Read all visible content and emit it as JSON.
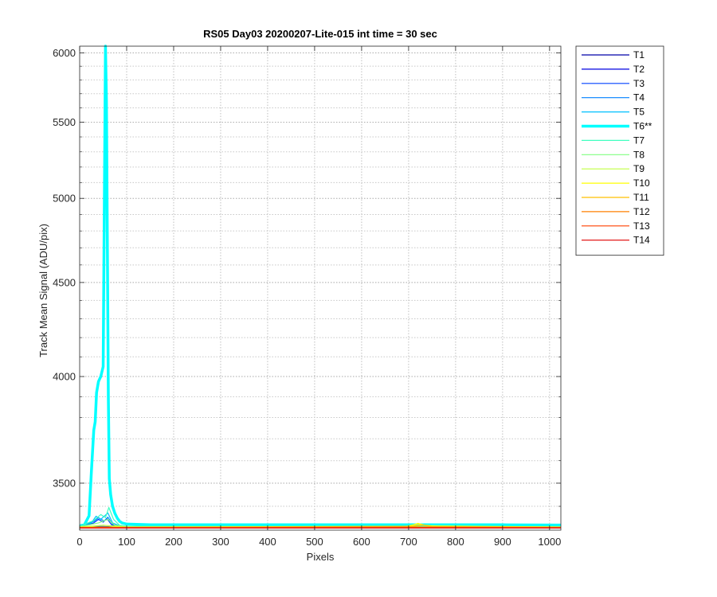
{
  "chart_data": {
    "type": "line",
    "title": "RS05 Day03 20200207-Lite-015 int time = 30 sec",
    "xlabel": "Pixels",
    "ylabel": "Track Mean Signal (ADU/pix)",
    "xlim": [
      0,
      1024
    ],
    "ylim": [
      3300,
      6050
    ],
    "yscale": "log",
    "xticks": [
      0,
      100,
      200,
      300,
      400,
      500,
      600,
      700,
      800,
      900,
      1000
    ],
    "yticks": [
      3500,
      4000,
      4500,
      5000,
      5500,
      6000
    ],
    "yminor": [
      3400,
      3600,
      3700,
      3800,
      3900,
      4100,
      4200,
      4300,
      4400,
      4600,
      4700,
      4800,
      4900,
      5100,
      5200,
      5300,
      5400,
      5600,
      5700,
      5800,
      5900
    ],
    "grid": "dotted",
    "legend_position": "outside-right",
    "series": [
      {
        "name": "T1",
        "color": "#0000a8",
        "width": 1.2,
        "points": [
          [
            0,
            3312
          ],
          [
            30,
            3314
          ],
          [
            50,
            3313
          ],
          [
            100,
            3311
          ],
          [
            400,
            3313
          ],
          [
            700,
            3312
          ],
          [
            1024,
            3312
          ]
        ]
      },
      {
        "name": "T2",
        "color": "#0000e0",
        "width": 1.2,
        "points": [
          [
            0,
            3313
          ],
          [
            35,
            3316
          ],
          [
            55,
            3315
          ],
          [
            100,
            3312
          ],
          [
            500,
            3313
          ],
          [
            800,
            3312
          ],
          [
            1024,
            3312
          ]
        ]
      },
      {
        "name": "T3",
        "color": "#0040ff",
        "width": 1.2,
        "points": [
          [
            0,
            3314
          ],
          [
            30,
            3330
          ],
          [
            40,
            3345
          ],
          [
            50,
            3333
          ],
          [
            58,
            3348
          ],
          [
            68,
            3322
          ],
          [
            85,
            3314
          ],
          [
            100,
            3313
          ],
          [
            500,
            3313
          ],
          [
            1024,
            3312
          ]
        ]
      },
      {
        "name": "T4",
        "color": "#0080ff",
        "width": 1.2,
        "points": [
          [
            0,
            3314
          ],
          [
            30,
            3336
          ],
          [
            40,
            3352
          ],
          [
            52,
            3338
          ],
          [
            60,
            3354
          ],
          [
            70,
            3324
          ],
          [
            85,
            3315
          ],
          [
            100,
            3314
          ],
          [
            500,
            3314
          ],
          [
            1024,
            3313
          ]
        ]
      },
      {
        "name": "T5",
        "color": "#00c0ff",
        "width": 1.2,
        "points": [
          [
            0,
            3315
          ],
          [
            25,
            3330
          ],
          [
            35,
            3358
          ],
          [
            45,
            3345
          ],
          [
            60,
            3372
          ],
          [
            70,
            3330
          ],
          [
            85,
            3318
          ],
          [
            100,
            3315
          ],
          [
            500,
            3315
          ],
          [
            1024,
            3314
          ]
        ]
      },
      {
        "name": "T6**",
        "color": "#00ffff",
        "width": 3.5,
        "points": [
          [
            0,
            3318
          ],
          [
            10,
            3322
          ],
          [
            20,
            3360
          ],
          [
            25,
            3550
          ],
          [
            30,
            3740
          ],
          [
            33,
            3780
          ],
          [
            36,
            3920
          ],
          [
            40,
            3975
          ],
          [
            45,
            4000
          ],
          [
            50,
            4050
          ],
          [
            53,
            5200
          ],
          [
            55,
            6050
          ],
          [
            57,
            5650
          ],
          [
            59,
            4700
          ],
          [
            61,
            3900
          ],
          [
            63,
            3520
          ],
          [
            66,
            3450
          ],
          [
            70,
            3400
          ],
          [
            75,
            3370
          ],
          [
            80,
            3350
          ],
          [
            85,
            3337
          ],
          [
            90,
            3330
          ],
          [
            100,
            3325
          ],
          [
            150,
            3322
          ],
          [
            300,
            3322
          ],
          [
            500,
            3322
          ],
          [
            700,
            3322
          ],
          [
            900,
            3322
          ],
          [
            1024,
            3321
          ]
        ]
      },
      {
        "name": "T7",
        "color": "#40ffc0",
        "width": 1.2,
        "points": [
          [
            0,
            3316
          ],
          [
            30,
            3340
          ],
          [
            45,
            3365
          ],
          [
            55,
            3352
          ],
          [
            62,
            3395
          ],
          [
            72,
            3345
          ],
          [
            85,
            3320
          ],
          [
            100,
            3316
          ],
          [
            500,
            3316
          ],
          [
            1024,
            3315
          ]
        ]
      },
      {
        "name": "T8",
        "color": "#80ff80",
        "width": 1.2,
        "points": [
          [
            0,
            3314
          ],
          [
            40,
            3330
          ],
          [
            60,
            3345
          ],
          [
            75,
            3320
          ],
          [
            100,
            3314
          ],
          [
            500,
            3314
          ],
          [
            1024,
            3313
          ]
        ]
      },
      {
        "name": "T9",
        "color": "#c0ff40",
        "width": 1.2,
        "points": [
          [
            0,
            3313
          ],
          [
            50,
            3320
          ],
          [
            100,
            3313
          ],
          [
            700,
            3316
          ],
          [
            720,
            3324
          ],
          [
            740,
            3318
          ],
          [
            1024,
            3313
          ]
        ]
      },
      {
        "name": "T10",
        "color": "#ffff00",
        "width": 1.2,
        "points": [
          [
            0,
            3313
          ],
          [
            100,
            3313
          ],
          [
            690,
            3314
          ],
          [
            710,
            3322
          ],
          [
            720,
            3328
          ],
          [
            735,
            3320
          ],
          [
            760,
            3316
          ],
          [
            1024,
            3313
          ]
        ]
      },
      {
        "name": "T11",
        "color": "#ffc000",
        "width": 1.2,
        "points": [
          [
            0,
            3312
          ],
          [
            100,
            3312
          ],
          [
            710,
            3316
          ],
          [
            730,
            3321
          ],
          [
            750,
            3315
          ],
          [
            1024,
            3312
          ]
        ]
      },
      {
        "name": "T12",
        "color": "#ff8000",
        "width": 1.2,
        "points": [
          [
            0,
            3311
          ],
          [
            300,
            3311
          ],
          [
            720,
            3313
          ],
          [
            1024,
            3311
          ]
        ]
      },
      {
        "name": "T13",
        "color": "#ff4000",
        "width": 1.2,
        "points": [
          [
            0,
            3310
          ],
          [
            500,
            3310
          ],
          [
            1024,
            3310
          ]
        ]
      },
      {
        "name": "T14",
        "color": "#e00000",
        "width": 1.2,
        "points": [
          [
            0,
            3309
          ],
          [
            500,
            3309
          ],
          [
            1024,
            3309
          ]
        ]
      }
    ]
  }
}
